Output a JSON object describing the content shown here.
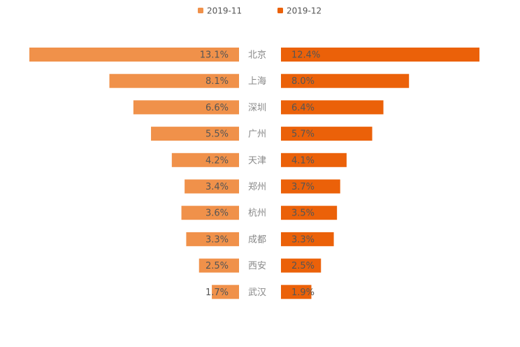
{
  "chart_data": {
    "type": "bar",
    "layout": "butterfly",
    "categories": [
      "北京",
      "上海",
      "深圳",
      "广州",
      "天津",
      "郑州",
      "杭州",
      "成都",
      "西安",
      "武汉"
    ],
    "series": [
      {
        "name": "2019-11",
        "color": "#F0914A",
        "values": [
          13.1,
          8.1,
          6.6,
          5.5,
          4.2,
          3.4,
          3.6,
          3.3,
          2.5,
          1.7
        ],
        "labels": [
          "13.1%",
          "8.1%",
          "6.6%",
          "5.5%",
          "4.2%",
          "3.4%",
          "3.6%",
          "3.3%",
          "2.5%",
          "1.7%"
        ]
      },
      {
        "name": "2019-12",
        "color": "#EB6109",
        "values": [
          12.4,
          8.0,
          6.4,
          5.7,
          4.1,
          3.7,
          3.5,
          3.3,
          2.5,
          1.9
        ],
        "labels": [
          "12.4%",
          "8.0%",
          "6.4%",
          "5.7%",
          "4.1%",
          "3.7%",
          "3.5%",
          "3.3%",
          "2.5%",
          "1.9%"
        ]
      }
    ],
    "value_unit": "%",
    "legend_position": "top-center",
    "axes_visible": false,
    "grid": false
  }
}
